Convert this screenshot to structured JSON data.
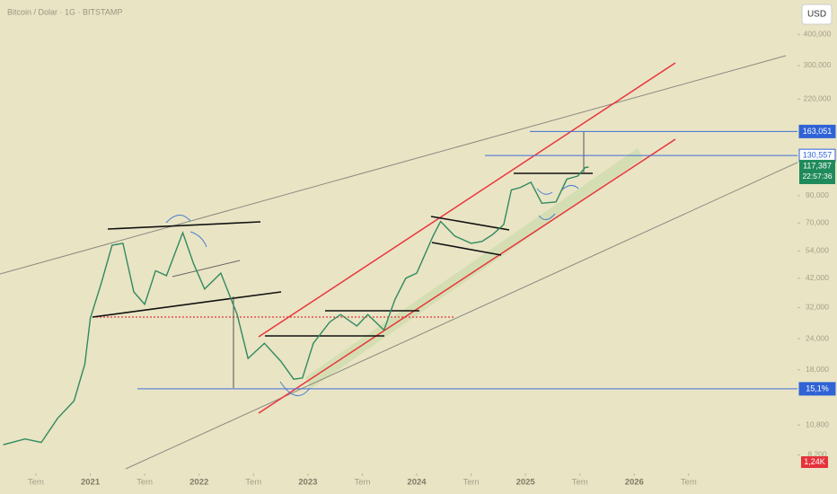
{
  "chart_data": {
    "type": "line",
    "title": "Bitcoin / Dolar · 1G · BITSTAMP",
    "currency": "USD",
    "log_scale": true,
    "color": "#2f8a5f",
    "xlim": [
      2020.17,
      2027.5
    ],
    "ylim": [
      7326,
      550000
    ],
    "xticks": [
      {
        "value": 2020.5,
        "label": "Tem"
      },
      2021,
      {
        "value": 2021.5,
        "label": "Tem"
      },
      2022,
      {
        "value": 2022.5,
        "label": "Tem"
      },
      2023,
      {
        "value": 2023.5,
        "label": "Tem"
      },
      2024,
      {
        "value": 2024.5,
        "label": "Tem"
      },
      2025,
      {
        "value": 2025.5,
        "label": "Tem"
      },
      2026,
      {
        "value": 2026.5,
        "label": "Tem"
      }
    ],
    "yticks": [
      {
        "value": 400000,
        "label": "400,000"
      },
      {
        "value": 300000,
        "label": "300,000"
      },
      {
        "value": 220000,
        "label": "220,000"
      },
      {
        "value": 90000,
        "label": "90,000"
      },
      {
        "value": 70000,
        "label": "70,000"
      },
      {
        "value": 54000,
        "label": "54,000"
      },
      {
        "value": 42000,
        "label": "42,000"
      },
      {
        "value": 32000,
        "label": "32,000"
      },
      {
        "value": 24000,
        "label": "24,000"
      },
      {
        "value": 18000,
        "label": "18,000"
      },
      {
        "value": 10800,
        "label": "10,800"
      },
      {
        "value": 8200,
        "label": "8,200"
      }
    ],
    "x": [
      2020.2,
      2020.4,
      2020.55,
      2020.7,
      2020.85,
      2020.95,
      2021.0,
      2021.1,
      2021.2,
      2021.3,
      2021.4,
      2021.5,
      2021.6,
      2021.7,
      2021.85,
      2021.95,
      2022.05,
      2022.2,
      2022.35,
      2022.45,
      2022.6,
      2022.75,
      2022.87,
      2022.95,
      2023.05,
      2023.2,
      2023.3,
      2023.45,
      2023.55,
      2023.7,
      2023.8,
      2023.9,
      2024.0,
      2024.15,
      2024.22,
      2024.35,
      2024.5,
      2024.6,
      2024.7,
      2024.8,
      2024.87,
      2024.95,
      2025.05,
      2025.15,
      2025.28,
      2025.38,
      2025.48,
      2025.55,
      2025.58
    ],
    "values": [
      9000,
      9500,
      9200,
      11500,
      13500,
      19000,
      29000,
      40000,
      57000,
      58000,
      37000,
      33000,
      45000,
      43000,
      64000,
      48000,
      38000,
      44000,
      30000,
      20000,
      23000,
      19500,
      16500,
      16700,
      23000,
      28000,
      30000,
      27000,
      30000,
      26000,
      34500,
      42000,
      44000,
      62000,
      71000,
      62000,
      58000,
      59000,
      63000,
      69000,
      95000,
      97000,
      102000,
      84000,
      85000,
      105000,
      108000,
      117000,
      117387
    ],
    "levels": [
      {
        "value": 163051,
        "label": "163,051"
      },
      {
        "value": 130557,
        "label": "130,557"
      }
    ],
    "last_price": {
      "value": 117387,
      "label": "117,387",
      "countdown": "22:57:36"
    },
    "support": {
      "value": 15100,
      "label": "15,1%"
    },
    "volume_label": "1,24K"
  }
}
